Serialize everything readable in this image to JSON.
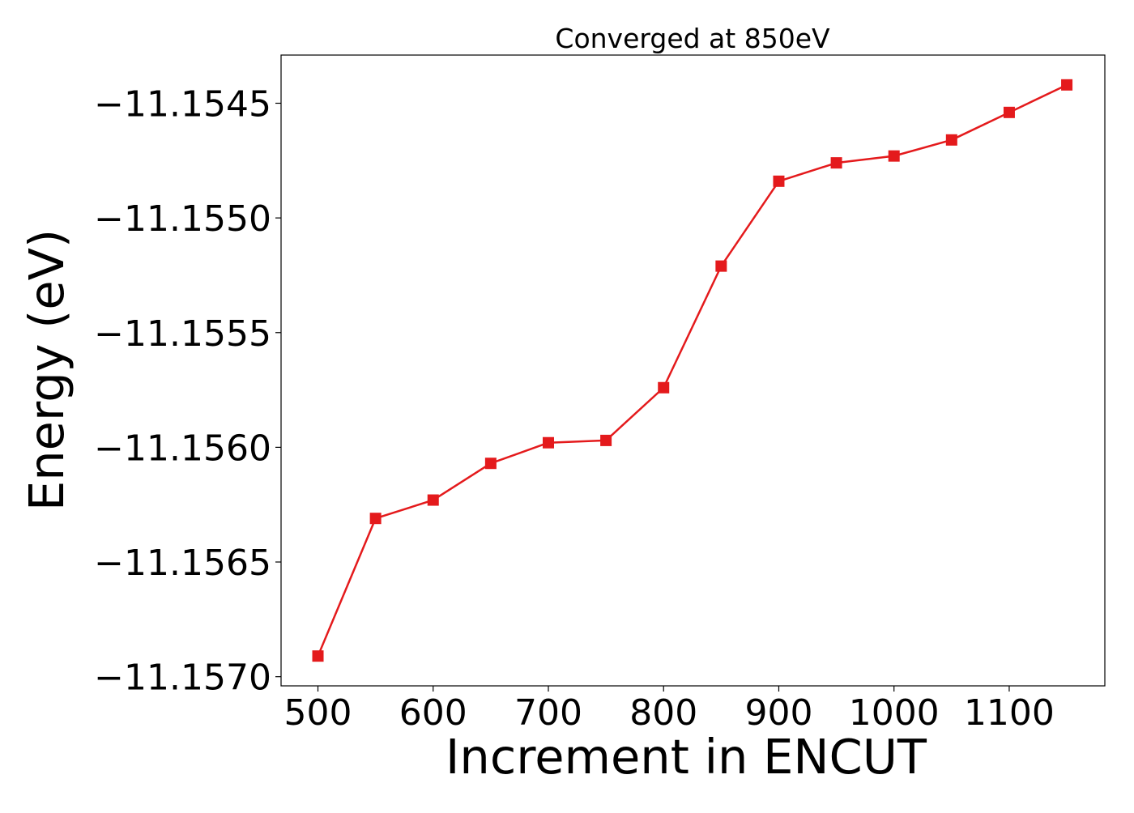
{
  "chart_data": {
    "type": "line",
    "title": "Converged at 850eV",
    "xlabel": "Increment in ENCUT",
    "ylabel": "Energy (eV)",
    "x": [
      500,
      550,
      600,
      650,
      700,
      750,
      800,
      850,
      900,
      950,
      1000,
      1050,
      1100,
      1150
    ],
    "series": [
      {
        "values": [
          -11.15691,
          -11.15631,
          -11.15623,
          -11.15607,
          -11.15598,
          -11.15597,
          -11.15574,
          -11.15521,
          -11.15484,
          -11.15476,
          -11.15473,
          -11.15466,
          -11.15454,
          -11.15442
        ],
        "color": "#e41a1c",
        "marker": "square"
      }
    ],
    "xlim": [
      468,
      1183
    ],
    "ylim": [
      -11.15704,
      -11.15429
    ],
    "xticks": [
      500,
      600,
      700,
      800,
      900,
      1000,
      1100
    ],
    "xtick_labels": [
      "500",
      "600",
      "700",
      "800",
      "900",
      "1000",
      "1100"
    ],
    "yticks": [
      -11.1545,
      -11.155,
      -11.1555,
      -11.156,
      -11.1565,
      -11.157
    ],
    "ytick_labels": [
      "−11.1545",
      "−11.1550",
      "−11.1555",
      "−11.1560",
      "−11.1565",
      "−11.1570"
    ],
    "grid": false,
    "legend": "none"
  }
}
